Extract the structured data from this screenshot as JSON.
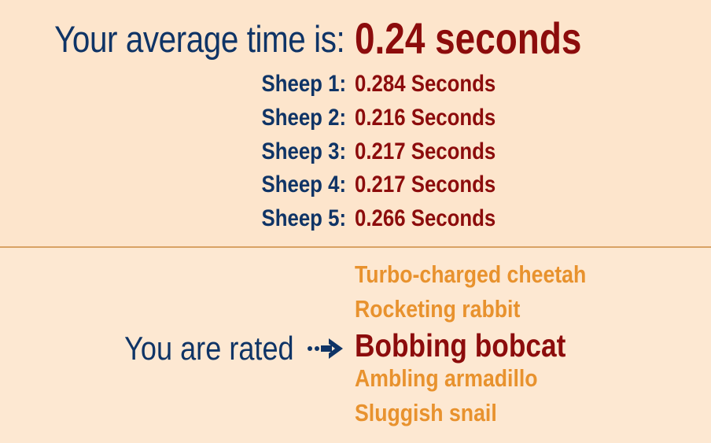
{
  "summary": {
    "average_label": "Your average time is:",
    "average_value": "0.24 seconds"
  },
  "sheep": [
    {
      "label": "Sheep 1:",
      "value": "0.284 Seconds"
    },
    {
      "label": "Sheep 2:",
      "value": "0.216 Seconds"
    },
    {
      "label": "Sheep 3:",
      "value": "0.217 Seconds"
    },
    {
      "label": "Sheep 4:",
      "value": "0.217 Seconds"
    },
    {
      "label": "Sheep 5:",
      "value": "0.266 Seconds"
    }
  ],
  "rating": {
    "label": "You are rated",
    "arrow_icon": "arrow-right-icon",
    "levels": [
      "Turbo-charged cheetah",
      "Rocketing rabbit",
      "Bobbing bobcat",
      "Ambling armadillo",
      "Sluggish snail"
    ],
    "current": "Bobbing bobcat"
  },
  "colors": {
    "top_background": "#fde5cc",
    "bottom_background": "#fde8d2",
    "divider": "#d9a265",
    "label_navy": "#0f3466",
    "value_red": "#8c0c0c",
    "rating_orange": "#e8922e"
  }
}
